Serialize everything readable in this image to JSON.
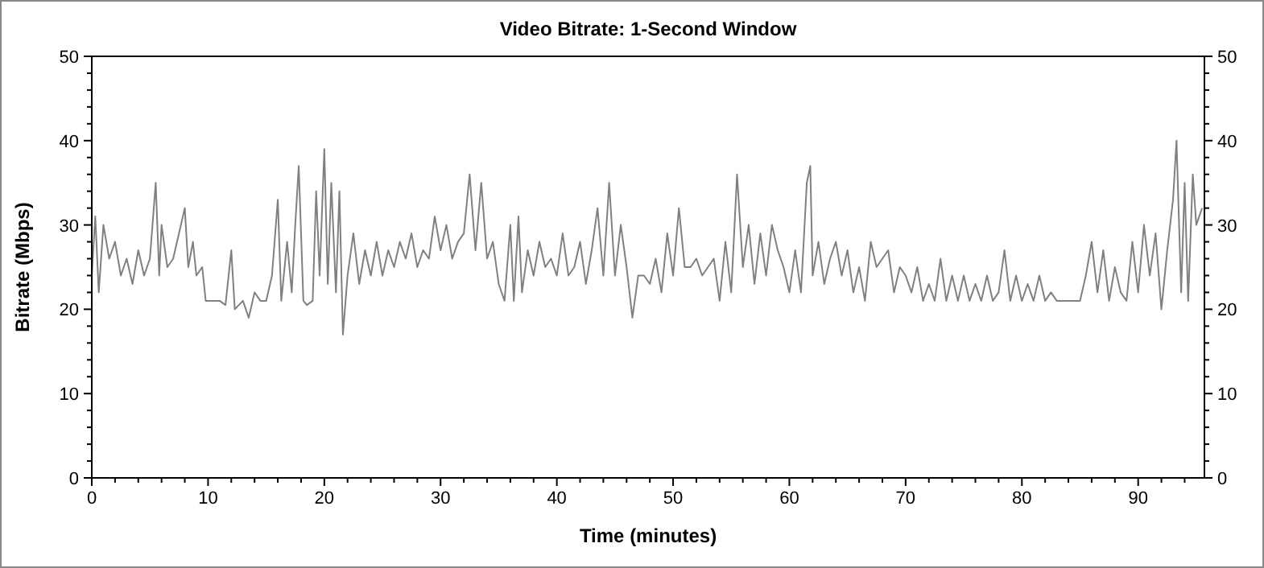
{
  "chart_data": {
    "type": "line",
    "title": "Video Bitrate: 1-Second Window",
    "xlabel": "Time (minutes)",
    "ylabel": "Bitrate (Mbps)",
    "xlim": [
      0,
      95.7
    ],
    "ylim": [
      0,
      50
    ],
    "y2lim": [
      0,
      50
    ],
    "xticks": [
      0,
      {
        "value": 2,
        "label": null
      },
      {
        "value": 4,
        "label": null
      },
      {
        "value": 6,
        "label": null
      },
      {
        "value": 8,
        "label": null
      },
      10,
      {
        "value": 12,
        "label": null
      },
      {
        "value": 14,
        "label": null
      },
      {
        "value": 16,
        "label": null
      },
      {
        "value": 18,
        "label": null
      },
      20,
      {
        "value": 22,
        "label": null
      },
      {
        "value": 24,
        "label": null
      },
      {
        "value": 26,
        "label": null
      },
      {
        "value": 28,
        "label": null
      },
      30,
      {
        "value": 32,
        "label": null
      },
      {
        "value": 34,
        "label": null
      },
      {
        "value": 36,
        "label": null
      },
      {
        "value": 38,
        "label": null
      },
      40,
      {
        "value": 42,
        "label": null
      },
      {
        "value": 44,
        "label": null
      },
      {
        "value": 46,
        "label": null
      },
      {
        "value": 48,
        "label": null
      },
      50,
      {
        "value": 52,
        "label": null
      },
      {
        "value": 54,
        "label": null
      },
      {
        "value": 56,
        "label": null
      },
      {
        "value": 58,
        "label": null
      },
      60,
      {
        "value": 62,
        "label": null
      },
      {
        "value": 64,
        "label": null
      },
      {
        "value": 66,
        "label": null
      },
      {
        "value": 68,
        "label": null
      },
      70,
      {
        "value": 72,
        "label": null
      },
      {
        "value": 74,
        "label": null
      },
      {
        "value": 76,
        "label": null
      },
      {
        "value": 78,
        "label": null
      },
      80,
      {
        "value": 82,
        "label": null
      },
      {
        "value": 84,
        "label": null
      },
      {
        "value": 86,
        "label": null
      },
      {
        "value": 88,
        "label": null
      },
      90,
      {
        "value": 92,
        "label": null
      },
      {
        "value": 94,
        "label": null
      }
    ],
    "yticks": [
      0,
      {
        "value": 2,
        "label": null
      },
      {
        "value": 4,
        "label": null
      },
      {
        "value": 6,
        "label": null
      },
      {
        "value": 8,
        "label": null
      },
      10,
      {
        "value": 12,
        "label": null
      },
      {
        "value": 14,
        "label": null
      },
      {
        "value": 16,
        "label": null
      },
      {
        "value": 18,
        "label": null
      },
      20,
      {
        "value": 22,
        "label": null
      },
      {
        "value": 24,
        "label": null
      },
      {
        "value": 26,
        "label": null
      },
      {
        "value": 28,
        "label": null
      },
      30,
      {
        "value": 32,
        "label": null
      },
      {
        "value": 34,
        "label": null
      },
      {
        "value": 36,
        "label": null
      },
      {
        "value": 38,
        "label": null
      },
      40,
      {
        "value": 42,
        "label": null
      },
      {
        "value": 44,
        "label": null
      },
      {
        "value": 46,
        "label": null
      },
      {
        "value": 48,
        "label": null
      },
      50
    ],
    "y2ticks": [
      0,
      {
        "value": 2,
        "label": null
      },
      {
        "value": 4,
        "label": null
      },
      {
        "value": 6,
        "label": null
      },
      {
        "value": 8,
        "label": null
      },
      10,
      {
        "value": 12,
        "label": null
      },
      {
        "value": 14,
        "label": null
      },
      {
        "value": 16,
        "label": null
      },
      {
        "value": 18,
        "label": null
      },
      20,
      {
        "value": 22,
        "label": null
      },
      {
        "value": 24,
        "label": null
      },
      {
        "value": 26,
        "label": null
      },
      {
        "value": 28,
        "label": null
      },
      30,
      {
        "value": 32,
        "label": null
      },
      {
        "value": 34,
        "label": null
      },
      {
        "value": 36,
        "label": null
      },
      {
        "value": 38,
        "label": null
      },
      40,
      {
        "value": 42,
        "label": null
      },
      {
        "value": 44,
        "label": null
      },
      {
        "value": 46,
        "label": null
      },
      {
        "value": 48,
        "label": null
      },
      50
    ],
    "grid": false,
    "marker": "none",
    "line_style": "solid",
    "series": [
      {
        "color": "#808080",
        "x": [
          0,
          0.3,
          0.6,
          1,
          1.5,
          2,
          2.5,
          3,
          3.5,
          4,
          4.5,
          5,
          5.5,
          5.8,
          6,
          6.5,
          7,
          7.5,
          8,
          8.3,
          8.7,
          9,
          9.5,
          9.8,
          10,
          11,
          11.5,
          12,
          12.3,
          13,
          13.5,
          14,
          14.5,
          15,
          15.5,
          16,
          16.3,
          16.8,
          17.2,
          17.5,
          17.8,
          18.2,
          18.5,
          19,
          19.3,
          19.6,
          20,
          20.3,
          20.6,
          21,
          21.3,
          21.6,
          22,
          22.5,
          23,
          23.5,
          24,
          24.5,
          25,
          25.5,
          26,
          26.5,
          27,
          27.5,
          28,
          28.5,
          29,
          29.5,
          30,
          30.5,
          31,
          31.5,
          32,
          32.5,
          33,
          33.5,
          34,
          34.5,
          35,
          35.5,
          36,
          36.3,
          36.7,
          37,
          37.5,
          38,
          38.5,
          39,
          39.5,
          40,
          40.5,
          41,
          41.5,
          42,
          42.5,
          43,
          43.5,
          44,
          44.5,
          45,
          45.5,
          46,
          46.5,
          47,
          47.5,
          48,
          48.5,
          49,
          49.5,
          50,
          50.5,
          51,
          51.5,
          52,
          52.5,
          53,
          53.5,
          54,
          54.5,
          55,
          55.5,
          56,
          56.5,
          57,
          57.5,
          58,
          58.5,
          59,
          59.5,
          60,
          60.5,
          61,
          61.5,
          61.8,
          62,
          62.5,
          63,
          63.5,
          64,
          64.5,
          65,
          65.5,
          66,
          66.5,
          67,
          67.5,
          68,
          68.5,
          69,
          69.5,
          70,
          70.5,
          71,
          71.5,
          72,
          72.5,
          73,
          73.5,
          74,
          74.5,
          75,
          75.5,
          76,
          76.5,
          77,
          77.5,
          78,
          78.5,
          79,
          79.5,
          80,
          80.5,
          81,
          81.5,
          82,
          82.5,
          83,
          84,
          85,
          85.5,
          86,
          86.5,
          87,
          87.5,
          88,
          88.5,
          89,
          89.5,
          90,
          90.5,
          91,
          91.5,
          92,
          92.5,
          93,
          93.3,
          93.7,
          94,
          94.3,
          94.7,
          95,
          95.5
        ],
        "values": [
          24,
          31,
          22,
          30,
          26,
          28,
          24,
          26,
          23,
          27,
          24,
          26,
          35,
          24,
          30,
          25,
          26,
          29,
          32,
          25,
          28,
          24,
          25,
          21,
          21,
          21,
          20.5,
          27,
          20,
          21,
          19,
          22,
          21,
          21,
          24,
          33,
          21,
          28,
          22,
          30,
          37,
          21,
          20.5,
          21,
          34,
          24,
          39,
          23,
          35,
          22,
          34,
          17,
          24,
          29,
          23,
          27,
          24,
          28,
          24,
          27,
          25,
          28,
          26,
          29,
          25,
          27,
          26,
          31,
          27,
          30,
          26,
          28,
          29,
          36,
          27,
          35,
          26,
          28,
          23,
          21,
          30,
          21,
          31,
          22,
          27,
          24,
          28,
          25,
          26,
          24,
          29,
          24,
          25,
          28,
          23,
          27,
          32,
          24,
          35,
          24,
          30,
          25,
          19,
          24,
          24,
          23,
          26,
          22,
          29,
          24,
          32,
          25,
          25,
          26,
          24,
          25,
          26,
          21,
          28,
          22,
          36,
          25,
          30,
          23,
          29,
          24,
          30,
          27,
          25,
          22,
          27,
          22,
          35,
          37,
          24,
          28,
          23,
          26,
          28,
          24,
          27,
          22,
          25,
          21,
          28,
          25,
          26,
          27,
          22,
          25,
          24,
          22,
          25,
          21,
          23,
          21,
          26,
          21,
          24,
          21,
          24,
          21,
          23,
          21,
          24,
          21,
          22,
          27,
          21,
          24,
          21,
          23,
          21,
          24,
          21,
          22,
          21,
          21,
          21,
          24,
          28,
          22,
          27,
          21,
          25,
          22,
          21,
          28,
          22,
          30,
          24,
          29,
          20,
          27,
          33,
          40,
          22,
          35,
          21,
          36,
          30,
          32
        ]
      }
    ]
  }
}
